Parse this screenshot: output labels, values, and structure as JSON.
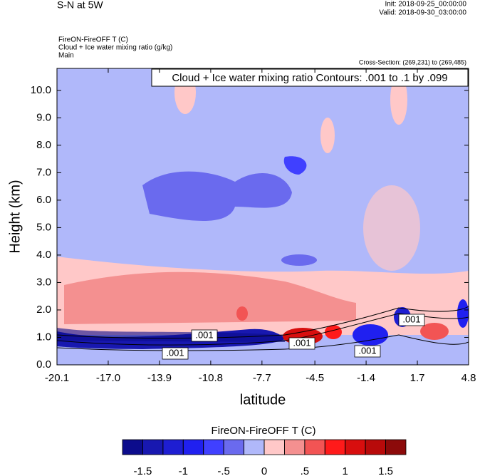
{
  "chart_data": {
    "type": "contour",
    "title": "S-N at 5W",
    "init": "Init: 2018-09-25_00:00:00",
    "valid": "Valid: 2018-09-30_03:00:00",
    "field_title": "FireON-FireOFF T   (C)",
    "contour_field_title": "Cloud + Ice water mixing ratio   (g/kg)",
    "section": "Main",
    "cross_section": "Cross-Section: (269,231) to (269,485)",
    "contour_info": "Cloud + Ice water mixing ratio Contours: .001 to .1 by .099",
    "contour_labels": [
      ".001",
      ".001",
      ".001",
      ".001",
      ".001"
    ],
    "x_label": "latitude",
    "y_label": "Height (km)",
    "xlim": [
      -20.1,
      4.8
    ],
    "ylim": [
      0,
      10.8
    ],
    "xticks": [
      -20.1,
      {
        "value": -17,
        "label": "-17.0"
      },
      -13.9,
      -10.8,
      -7.7,
      -4.5,
      -1.4,
      1.7,
      4.8
    ],
    "yticks": [
      {
        "value": 0,
        "label": "0.0"
      },
      {
        "value": 1,
        "label": "1.0"
      },
      {
        "value": 2,
        "label": "2.0"
      },
      {
        "value": 3,
        "label": "3.0"
      },
      {
        "value": 4,
        "label": "4.0"
      },
      {
        "value": 5,
        "label": "5.0"
      },
      {
        "value": 6,
        "label": "6.0"
      },
      {
        "value": 7,
        "label": "7.0"
      },
      {
        "value": 8,
        "label": "8.0"
      },
      {
        "value": 9,
        "label": "9.0"
      },
      {
        "value": 10,
        "label": "10.0"
      }
    ],
    "colorbar": {
      "title": "FireON-FireOFF T  (C)",
      "colors": [
        "#0c0c8c",
        "#1818b0",
        "#1e1ed2",
        "#2020f0",
        "#4040ff",
        "#6a6aee",
        "#b0b8fa",
        "#ffc8c8",
        "#f49090",
        "#f25454",
        "#ff1a1a",
        "#d80e0e",
        "#b80a0a",
        "#8c0a0a"
      ],
      "levels": [
        -1.5,
        -1.25,
        -1,
        -0.75,
        -0.5,
        -0.25,
        0,
        0.25,
        0.5,
        0.75,
        1,
        1.25,
        1.5
      ],
      "ticks": [
        -1.5,
        -1,
        {
          "value": -0.5,
          "label": "-.5"
        },
        0,
        {
          "value": 0.5,
          "label": ".5"
        },
        1,
        1.5
      ]
    }
  }
}
